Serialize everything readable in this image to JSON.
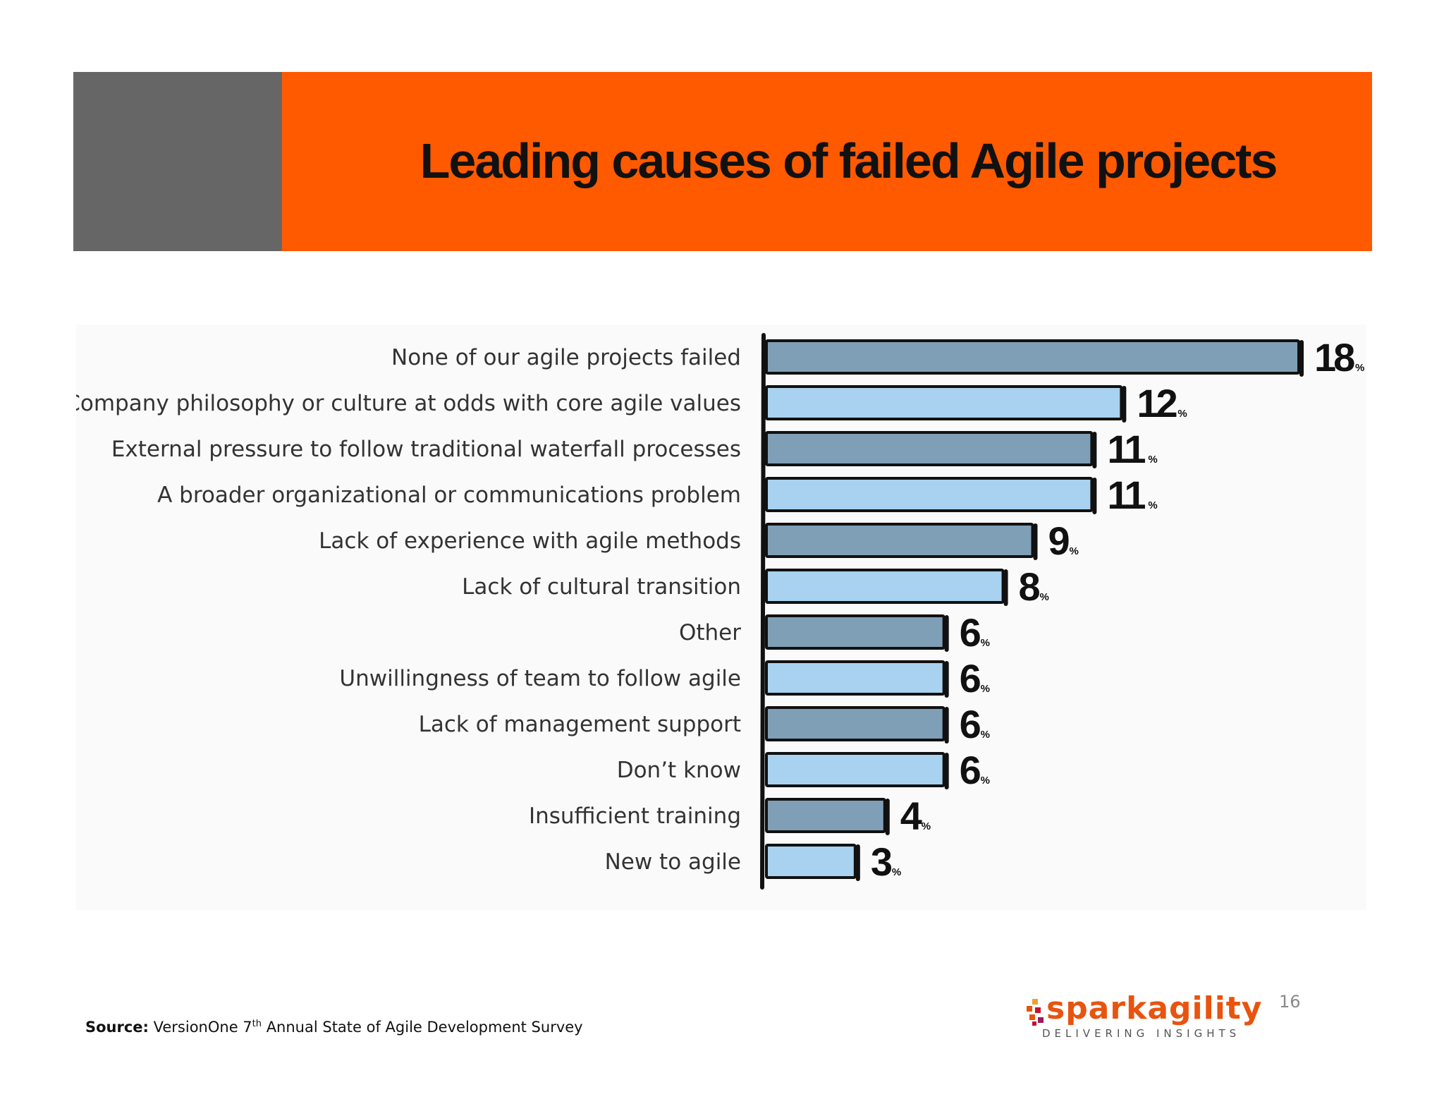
{
  "slide": {
    "title": "Leading causes of failed Agile projects",
    "page_number": "16"
  },
  "source": {
    "label": "Source:",
    "text_before": "VersionOne 7",
    "superscript": "th",
    "text_after": " Annual State of Agile Development Survey"
  },
  "logo": {
    "word_spark": "spark",
    "word_agility": "agility",
    "tagline": "DELIVERING INSIGHTS"
  },
  "colors": {
    "band_grey": "#666666",
    "band_orange": "#ff5a00",
    "bar_dark": "#7f9fb7",
    "bar_light": "#a8d2ef",
    "bar_outline": "#111111"
  },
  "chart_data": {
    "type": "bar",
    "orientation": "horizontal",
    "unit": "%",
    "categories": [
      "None of our agile projects failed",
      "Company philosophy or culture at odds with core agile values",
      "External pressure to follow traditional waterfall processes",
      "A broader organizational or communications problem",
      "Lack of experience with agile methods",
      "Lack of cultural transition",
      "Other",
      "Unwillingness of team to follow agile",
      "Lack of management support",
      "Don’t know",
      "Insufficient training",
      "New to agile"
    ],
    "values": [
      18,
      12,
      11,
      11,
      9,
      8,
      6,
      6,
      6,
      6,
      4,
      3
    ],
    "value_labels": [
      "18",
      "12",
      "11",
      "11",
      "9",
      "8",
      "6",
      "6",
      "6",
      "6",
      "4",
      "3"
    ],
    "xlim": [
      0,
      18
    ]
  }
}
